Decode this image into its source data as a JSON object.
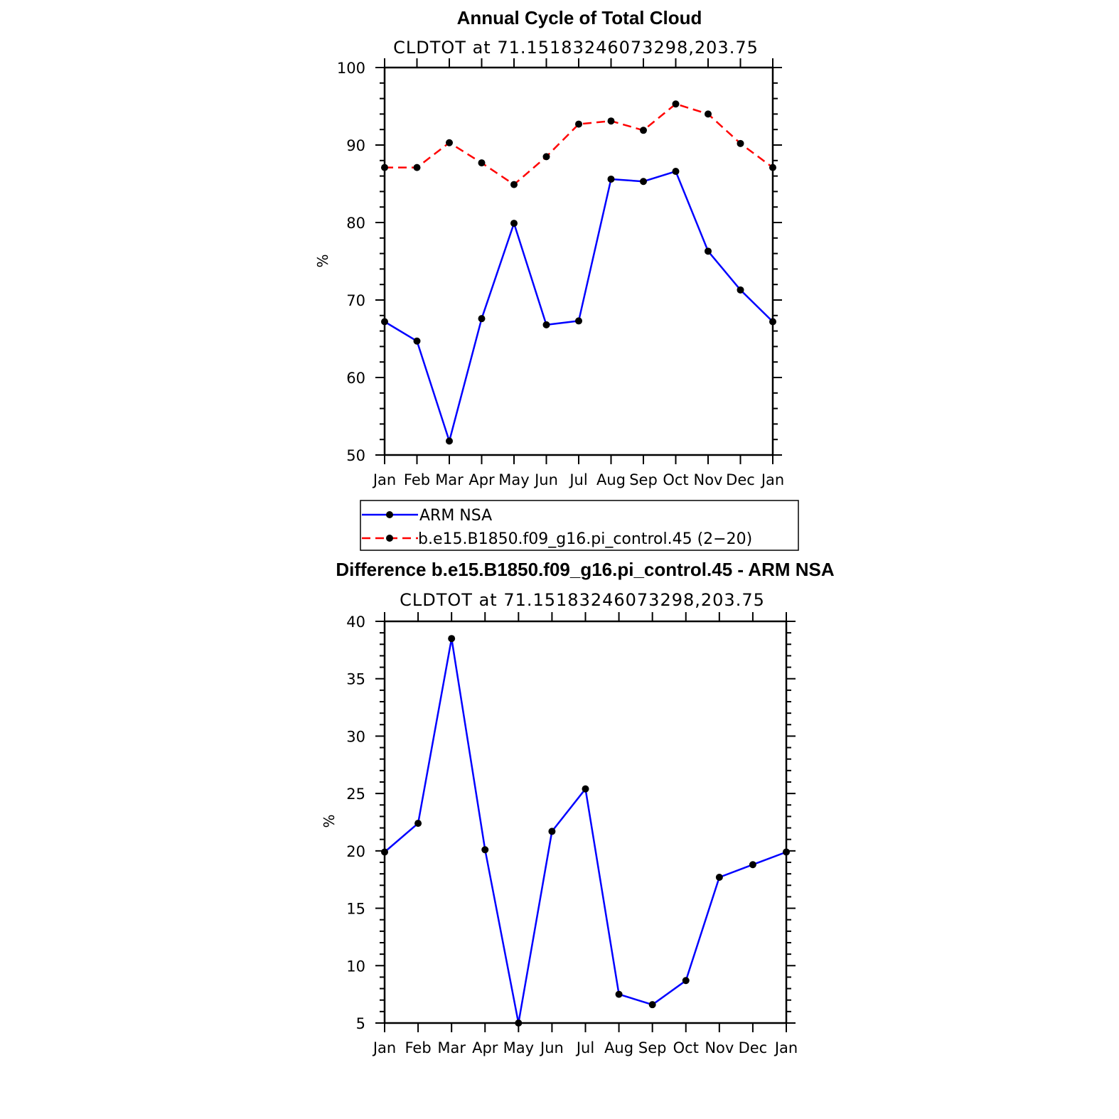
{
  "chart_data": [
    {
      "type": "line",
      "title": "Annual Cycle of Total Cloud",
      "subtitle": "CLDTOT at 71.15183246073298,203.75",
      "xlabel": "",
      "ylabel": "%",
      "categories": [
        "Jan",
        "Feb",
        "Mar",
        "Apr",
        "May",
        "Jun",
        "Jul",
        "Aug",
        "Sep",
        "Oct",
        "Nov",
        "Dec",
        "Jan"
      ],
      "ylim": [
        50,
        100
      ],
      "yticks": [
        50,
        60,
        70,
        80,
        90,
        100
      ],
      "grid": false,
      "legend_position": "below",
      "series": [
        {
          "name": "ARM NSA",
          "color": "#0000ff",
          "dash": false,
          "values": [
            67.2,
            64.7,
            51.8,
            67.6,
            79.9,
            66.8,
            67.3,
            85.6,
            85.3,
            86.6,
            76.3,
            71.3,
            67.2
          ]
        },
        {
          "name": "b.e15.B1850.f09_g16.pi_control.45 (2−20)",
          "color": "#ff0000",
          "dash": true,
          "values": [
            87.1,
            87.1,
            90.3,
            87.7,
            84.9,
            88.5,
            92.7,
            93.1,
            91.9,
            95.3,
            94.0,
            90.2,
            87.1
          ]
        }
      ]
    },
    {
      "type": "line",
      "title": "Difference b.e15.B1850.f09_g16.pi_control.45 - ARM NSA",
      "subtitle": "CLDTOT at 71.15183246073298,203.75",
      "xlabel": "",
      "ylabel": "%",
      "categories": [
        "Jan",
        "Feb",
        "Mar",
        "Apr",
        "May",
        "Jun",
        "Jul",
        "Aug",
        "Sep",
        "Oct",
        "Nov",
        "Dec",
        "Jan"
      ],
      "ylim": [
        5,
        40
      ],
      "yticks": [
        5,
        10,
        15,
        20,
        25,
        30,
        35,
        40
      ],
      "grid": false,
      "series": [
        {
          "color": "#0000ff",
          "dash": false,
          "values": [
            19.9,
            22.4,
            38.5,
            20.1,
            5.0,
            21.7,
            25.4,
            7.5,
            6.6,
            8.7,
            17.7,
            18.8,
            19.9
          ]
        }
      ]
    }
  ]
}
